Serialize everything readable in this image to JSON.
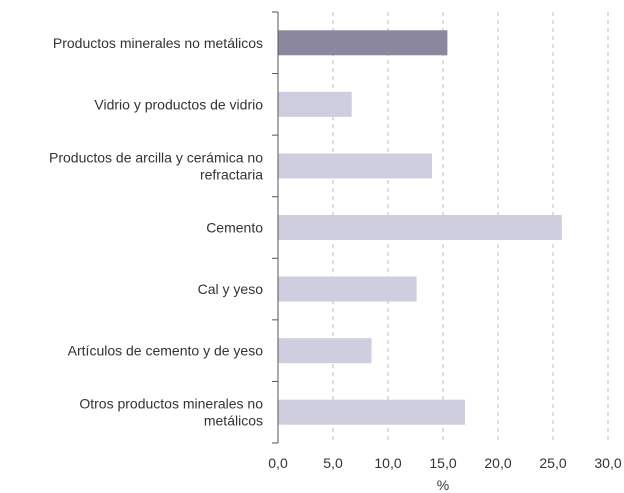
{
  "chart_data": {
    "type": "bar",
    "orientation": "horizontal",
    "title": "",
    "xlabel": "%",
    "ylabel": "",
    "xlim": [
      0,
      30
    ],
    "x_ticks": [
      "0,0",
      "5,0",
      "10,0",
      "15,0",
      "20,0",
      "25,0",
      "30,0"
    ],
    "grid": "vertical dashed",
    "categories": [
      [
        "Productos minerales no metálicos"
      ],
      [
        "Vidrio y productos de vidrio"
      ],
      [
        "Productos de arcilla y cerámica no",
        "refractaria"
      ],
      [
        "Cemento"
      ],
      [
        "Cal y yeso"
      ],
      [
        "Artículos de cemento y de yeso"
      ],
      [
        "Otros productos minerales no",
        "metálicos"
      ]
    ],
    "values": [
      15.4,
      6.7,
      14.0,
      25.8,
      12.6,
      8.5,
      17.0
    ],
    "colors": {
      "highlight": "#8a879f",
      "default": "#cfcde0",
      "axis": "#555555",
      "grid": "#bbbbbb"
    },
    "highlight_index": 0
  }
}
